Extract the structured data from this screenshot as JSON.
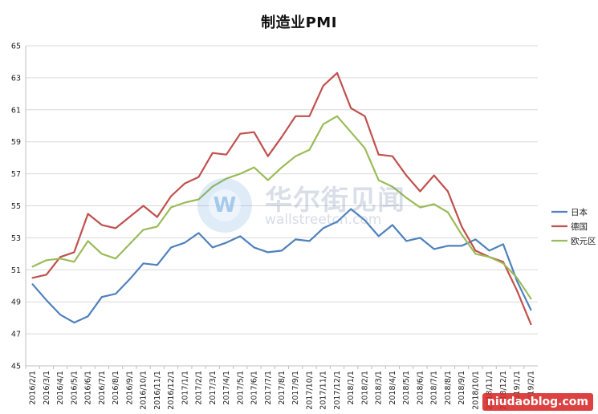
{
  "chart_data": {
    "type": "line",
    "title": "制造业PMI",
    "xlabel": "",
    "ylabel": "",
    "ylim": [
      45,
      65
    ],
    "y_ticks": [
      "65",
      "63",
      "61",
      "59",
      "57",
      "55",
      "53",
      "51",
      "49",
      "47",
      "45"
    ],
    "grid": "horizontal",
    "legend_position": "right",
    "categories": [
      "2016/2/1",
      "2016/3/1",
      "2016/4/1",
      "2016/5/1",
      "2016/6/1",
      "2016/7/1",
      "2016/8/1",
      "2016/9/1",
      "2016/10/1",
      "2016/11/1",
      "2016/12/1",
      "2017/1/1",
      "2017/2/1",
      "2017/3/1",
      "2017/4/1",
      "2017/5/1",
      "2017/6/1",
      "2017/7/1",
      "2017/8/1",
      "2017/9/1",
      "2017/10/1",
      "2017/11/1",
      "2017/12/1",
      "2018/1/1",
      "2018/2/1",
      "2018/3/1",
      "2018/4/1",
      "2018/5/1",
      "2018/6/1",
      "2018/7/1",
      "2018/8/1",
      "2018/9/1",
      "2018/10/1",
      "2018/11/1",
      "2018/12/1",
      "2019/1/1",
      "2019/2/1"
    ],
    "series": [
      {
        "name": "日本",
        "color": "#4f81bd",
        "values": [
          50.1,
          49.1,
          48.2,
          47.7,
          48.1,
          49.3,
          49.5,
          50.4,
          51.4,
          51.3,
          52.4,
          52.7,
          53.3,
          52.4,
          52.7,
          53.1,
          52.4,
          52.1,
          52.2,
          52.9,
          52.8,
          53.6,
          54.0,
          54.8,
          54.1,
          53.1,
          53.8,
          52.8,
          53.0,
          52.3,
          52.5,
          52.5,
          52.9,
          52.2,
          52.6,
          50.3,
          48.5
        ]
      },
      {
        "name": "德国",
        "color": "#c0504d",
        "values": [
          50.5,
          50.7,
          51.8,
          52.1,
          54.5,
          53.8,
          53.6,
          54.3,
          55.0,
          54.3,
          55.6,
          56.4,
          56.8,
          58.3,
          58.2,
          59.5,
          59.6,
          58.1,
          59.3,
          60.6,
          60.6,
          62.5,
          63.3,
          61.1,
          60.6,
          58.2,
          58.1,
          56.9,
          55.9,
          56.9,
          55.9,
          53.7,
          52.2,
          51.8,
          51.5,
          49.7,
          47.6
        ]
      },
      {
        "name": "欧元区",
        "color": "#9bbb59",
        "values": [
          51.2,
          51.6,
          51.7,
          51.5,
          52.8,
          52.0,
          51.7,
          52.6,
          53.5,
          53.7,
          54.9,
          55.2,
          55.4,
          56.2,
          56.7,
          57.0,
          57.4,
          56.6,
          57.4,
          58.1,
          58.5,
          60.1,
          60.6,
          59.6,
          58.6,
          56.6,
          56.2,
          55.5,
          54.9,
          55.1,
          54.6,
          53.2,
          52.0,
          51.8,
          51.4,
          50.5,
          49.2
        ]
      }
    ]
  },
  "watermark": {
    "cn": "华尔街见闻",
    "en": "wallstreetcn.com",
    "logo_letter": "W"
  },
  "corner_mark": "niudaoblog.com"
}
